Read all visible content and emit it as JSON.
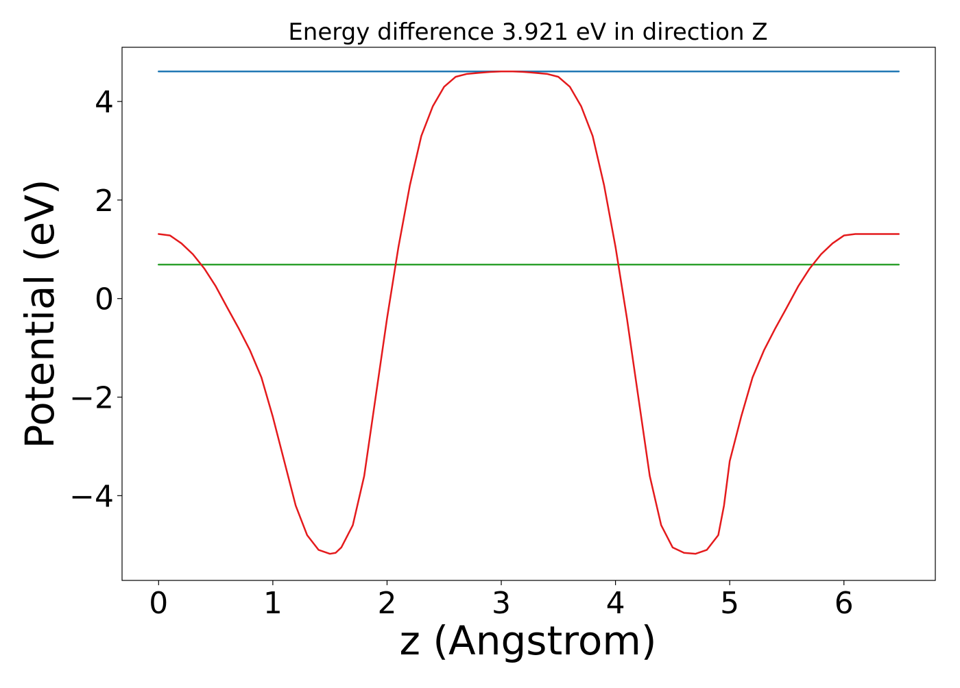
{
  "chart_data": {
    "type": "line",
    "title": "Energy difference 3.921 eV in direction Z",
    "xlabel": "z (Angstrom)",
    "ylabel": "Potential (eV)",
    "xlim": [
      -0.32,
      6.8
    ],
    "ylim": [
      -5.72,
      5.1
    ],
    "grid": false,
    "xticks": [
      {
        "value": 0,
        "label": "0"
      },
      {
        "value": 1,
        "label": "1"
      },
      {
        "value": 2,
        "label": "2"
      },
      {
        "value": 3,
        "label": "3"
      },
      {
        "value": 4,
        "label": "4"
      },
      {
        "value": 5,
        "label": "5"
      },
      {
        "value": 6,
        "label": "6"
      }
    ],
    "yticks": [
      {
        "value": -4,
        "label": "−4"
      },
      {
        "value": -2,
        "label": "−2"
      },
      {
        "value": 0,
        "label": "0"
      },
      {
        "value": 2,
        "label": "2"
      },
      {
        "value": 4,
        "label": "4"
      }
    ],
    "series": [
      {
        "color": "#1f77b4",
        "x": [
          0,
          6.48
        ],
        "y": [
          4.61,
          4.61
        ]
      },
      {
        "color": "#2ca02c",
        "x": [
          0,
          6.48
        ],
        "y": [
          0.69,
          0.69
        ]
      },
      {
        "color": "#e41a1c",
        "x": [
          0,
          0.1,
          0.2,
          0.3,
          0.4,
          0.5,
          0.6,
          0.7,
          0.8,
          0.9,
          1.0,
          1.1,
          1.2,
          1.3,
          1.4,
          1.5,
          1.55,
          1.6,
          1.7,
          1.8,
          1.9,
          2.0,
          2.1,
          2.2,
          2.3,
          2.4,
          2.5,
          2.6,
          2.7,
          2.8,
          2.9,
          3.0,
          3.1,
          3.2,
          3.25,
          3.3,
          3.4,
          3.5,
          3.6,
          3.7,
          3.8,
          3.9,
          4.0,
          4.1,
          4.2,
          4.3,
          4.4,
          4.5,
          4.6,
          4.7,
          4.8,
          4.9,
          4.95,
          5.0,
          5.1,
          5.2,
          5.3,
          5.4,
          5.5,
          5.6,
          5.7,
          5.8,
          5.9,
          6.0,
          6.1,
          6.2,
          6.3,
          6.4,
          6.48
        ],
        "y": [
          1.31,
          1.28,
          1.12,
          0.9,
          0.61,
          0.25,
          -0.18,
          -0.6,
          -1.05,
          -1.6,
          -2.4,
          -3.3,
          -4.2,
          -4.8,
          -5.1,
          -5.18,
          -5.16,
          -5.05,
          -4.6,
          -3.6,
          -2.0,
          -0.4,
          1.05,
          2.3,
          3.3,
          3.9,
          4.3,
          4.5,
          4.56,
          4.58,
          4.6,
          4.61,
          4.61,
          4.6,
          4.59,
          4.58,
          4.56,
          4.5,
          4.3,
          3.9,
          3.3,
          2.3,
          1.05,
          -0.4,
          -2.0,
          -3.6,
          -4.6,
          -5.05,
          -5.16,
          -5.18,
          -5.1,
          -4.8,
          -4.2,
          -3.3,
          -2.4,
          -1.6,
          -1.05,
          -0.6,
          -0.18,
          0.25,
          0.61,
          0.9,
          1.12,
          1.28,
          1.31,
          1.31,
          1.31,
          1.31,
          1.31
        ]
      }
    ]
  }
}
